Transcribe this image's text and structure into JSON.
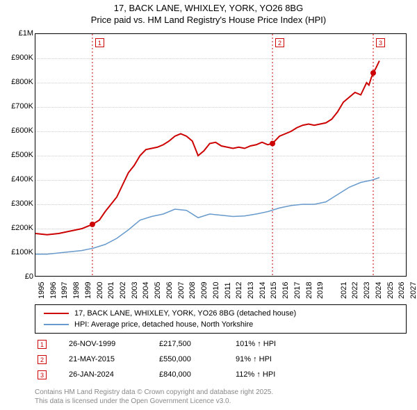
{
  "title_line1": "17, BACK LANE, WHIXLEY, YORK, YO26 8BG",
  "title_line2": "Price paid vs. HM Land Registry's House Price Index (HPI)",
  "chart": {
    "type": "line",
    "background_color": "#ffffff",
    "grid_color": "#cccccc",
    "border_color": "#000000",
    "x_domain": [
      1995,
      2027
    ],
    "y_domain": [
      0,
      1000000
    ],
    "y_ticks": [
      0,
      100000,
      200000,
      300000,
      400000,
      500000,
      600000,
      700000,
      800000,
      900000,
      1000000
    ],
    "y_tick_labels": [
      "£0",
      "£100K",
      "£200K",
      "£300K",
      "£400K",
      "£500K",
      "£600K",
      "£700K",
      "£800K",
      "£900K",
      "£1M"
    ],
    "x_ticks": [
      1995,
      1996,
      1997,
      1998,
      1999,
      2000,
      2001,
      2002,
      2003,
      2004,
      2005,
      2006,
      2007,
      2008,
      2009,
      2010,
      2011,
      2012,
      2013,
      2014,
      2015,
      2016,
      2017,
      2018,
      2019,
      2021,
      2022,
      2023,
      2024,
      2025,
      2026,
      2027
    ],
    "series": [
      {
        "name": "property",
        "color": "#cc0000",
        "line_width": 2,
        "data": [
          [
            1995,
            180000
          ],
          [
            1996,
            175000
          ],
          [
            1997,
            180000
          ],
          [
            1998,
            190000
          ],
          [
            1998.5,
            195000
          ],
          [
            1999,
            200000
          ],
          [
            1999.9,
            217500
          ],
          [
            2000.5,
            235000
          ],
          [
            2001,
            270000
          ],
          [
            2001.5,
            300000
          ],
          [
            2002,
            330000
          ],
          [
            2002.5,
            380000
          ],
          [
            2003,
            430000
          ],
          [
            2003.5,
            460000
          ],
          [
            2004,
            500000
          ],
          [
            2004.5,
            525000
          ],
          [
            2005,
            530000
          ],
          [
            2005.5,
            535000
          ],
          [
            2006,
            545000
          ],
          [
            2006.5,
            560000
          ],
          [
            2007,
            580000
          ],
          [
            2007.5,
            590000
          ],
          [
            2008,
            580000
          ],
          [
            2008.5,
            560000
          ],
          [
            2009,
            500000
          ],
          [
            2009.5,
            520000
          ],
          [
            2010,
            550000
          ],
          [
            2010.5,
            555000
          ],
          [
            2011,
            540000
          ],
          [
            2011.5,
            535000
          ],
          [
            2012,
            530000
          ],
          [
            2012.5,
            535000
          ],
          [
            2013,
            530000
          ],
          [
            2013.5,
            540000
          ],
          [
            2014,
            545000
          ],
          [
            2014.5,
            555000
          ],
          [
            2015,
            545000
          ],
          [
            2015.4,
            550000
          ],
          [
            2016,
            580000
          ],
          [
            2016.5,
            590000
          ],
          [
            2017,
            600000
          ],
          [
            2017.5,
            615000
          ],
          [
            2018,
            625000
          ],
          [
            2018.5,
            630000
          ],
          [
            2019,
            625000
          ],
          [
            2019.5,
            630000
          ],
          [
            2020,
            635000
          ],
          [
            2020.5,
            650000
          ],
          [
            2021,
            680000
          ],
          [
            2021.5,
            720000
          ],
          [
            2022,
            740000
          ],
          [
            2022.5,
            760000
          ],
          [
            2023,
            750000
          ],
          [
            2023.2,
            770000
          ],
          [
            2023.5,
            800000
          ],
          [
            2023.7,
            790000
          ],
          [
            2023.9,
            820000
          ],
          [
            2024.07,
            840000
          ],
          [
            2024.3,
            860000
          ],
          [
            2024.6,
            890000
          ]
        ],
        "markers": [
          {
            "x": 1999.9,
            "y": 217500
          },
          {
            "x": 2015.4,
            "y": 550000
          },
          {
            "x": 2024.07,
            "y": 840000
          }
        ]
      },
      {
        "name": "hpi",
        "color": "#6699cc",
        "line_width": 1.5,
        "data": [
          [
            1995,
            95000
          ],
          [
            1996,
            95000
          ],
          [
            1997,
            100000
          ],
          [
            1998,
            105000
          ],
          [
            1999,
            110000
          ],
          [
            2000,
            120000
          ],
          [
            2001,
            135000
          ],
          [
            2002,
            160000
          ],
          [
            2003,
            195000
          ],
          [
            2004,
            235000
          ],
          [
            2005,
            250000
          ],
          [
            2006,
            260000
          ],
          [
            2007,
            280000
          ],
          [
            2008,
            275000
          ],
          [
            2009,
            245000
          ],
          [
            2010,
            260000
          ],
          [
            2011,
            255000
          ],
          [
            2012,
            250000
          ],
          [
            2013,
            252000
          ],
          [
            2014,
            260000
          ],
          [
            2015,
            270000
          ],
          [
            2016,
            285000
          ],
          [
            2017,
            295000
          ],
          [
            2018,
            300000
          ],
          [
            2019,
            300000
          ],
          [
            2020,
            310000
          ],
          [
            2021,
            340000
          ],
          [
            2022,
            370000
          ],
          [
            2023,
            390000
          ],
          [
            2024,
            400000
          ],
          [
            2024.6,
            410000
          ]
        ]
      }
    ],
    "event_lines": [
      {
        "num": "1",
        "x": 1999.9
      },
      {
        "num": "2",
        "x": 2015.4
      },
      {
        "num": "3",
        "x": 2024.07
      }
    ]
  },
  "legend": {
    "items": [
      {
        "color": "#cc0000",
        "width": 2,
        "label": "17, BACK LANE, WHIXLEY, YORK, YO26 8BG (detached house)"
      },
      {
        "color": "#6699cc",
        "width": 1.5,
        "label": "HPI: Average price, detached house, North Yorkshire"
      }
    ]
  },
  "events": [
    {
      "num": "1",
      "date": "26-NOV-1999",
      "price": "£217,500",
      "pct": "101% ↑ HPI"
    },
    {
      "num": "2",
      "date": "21-MAY-2015",
      "price": "£550,000",
      "pct": "91% ↑ HPI"
    },
    {
      "num": "3",
      "date": "26-JAN-2024",
      "price": "£840,000",
      "pct": "112% ↑ HPI"
    }
  ],
  "footnote_line1": "Contains HM Land Registry data © Crown copyright and database right 2025.",
  "footnote_line2": "This data is licensed under the Open Government Licence v3.0.",
  "colors": {
    "marker_border": "#cc0000",
    "event_line": "#cc0000",
    "footnote": "#888888"
  }
}
